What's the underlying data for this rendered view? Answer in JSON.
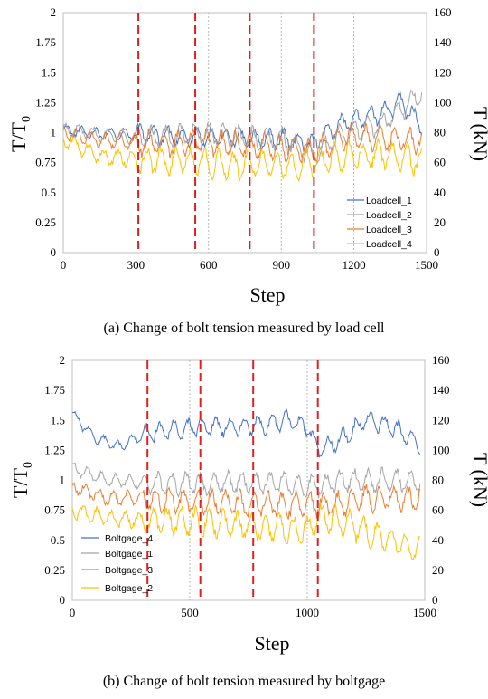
{
  "chart_data": [
    {
      "type": "line",
      "caption": "(a) Change of bolt tension measured by load cell",
      "xlabel": "Step",
      "ylabel_left": "T/T0",
      "ylabel_right": "T (kN)",
      "xlim": [
        0,
        1500
      ],
      "ylim_left": [
        0,
        2
      ],
      "ylim_right": [
        0,
        160
      ],
      "x_ticks": [
        "0",
        "300",
        "600",
        "900",
        "1200",
        "1500"
      ],
      "y_ticks_left": [
        "0",
        "0.25",
        "0.5",
        "0.75",
        "1",
        "1.25",
        "1.5",
        "1.75",
        "2"
      ],
      "y_ticks_right": [
        "0",
        "20",
        "40",
        "60",
        "80",
        "100",
        "120",
        "140",
        "160"
      ],
      "gridlines_x": [
        300,
        600,
        900,
        1200
      ],
      "vertical_markers": [
        310,
        545,
        770,
        1035
      ],
      "legend_position": "lower-right",
      "series": [
        {
          "name": "Loadcell_1",
          "color": "#4472c4",
          "points": [
            [
              0,
              1.02
            ],
            [
              150,
              0.99
            ],
            [
              310,
              0.99
            ],
            [
              450,
              0.97
            ],
            [
              545,
              0.96
            ],
            [
              700,
              0.96
            ],
            [
              770,
              0.95
            ],
            [
              900,
              0.95
            ],
            [
              1035,
              0.9
            ],
            [
              1150,
              1.08
            ],
            [
              1300,
              1.15
            ],
            [
              1400,
              1.25
            ],
            [
              1460,
              1.1
            ],
            [
              1480,
              1.05
            ]
          ]
        },
        {
          "name": "Loadcell_2",
          "color": "#a5a5a5",
          "points": [
            [
              0,
              1.04
            ],
            [
              150,
              0.98
            ],
            [
              310,
              0.96
            ],
            [
              450,
              0.96
            ],
            [
              545,
              1.0
            ],
            [
              700,
              0.98
            ],
            [
              770,
              0.95
            ],
            [
              900,
              0.95
            ],
            [
              1035,
              0.8
            ],
            [
              1150,
              1.0
            ],
            [
              1300,
              1.05
            ],
            [
              1400,
              1.2
            ],
            [
              1460,
              1.3
            ],
            [
              1480,
              1.35
            ]
          ]
        },
        {
          "name": "Loadcell_3",
          "color": "#ed7d31",
          "points": [
            [
              0,
              1.0
            ],
            [
              150,
              0.94
            ],
            [
              310,
              0.92
            ],
            [
              450,
              0.9
            ],
            [
              545,
              0.93
            ],
            [
              700,
              0.9
            ],
            [
              770,
              0.89
            ],
            [
              900,
              0.88
            ],
            [
              1035,
              0.85
            ],
            [
              1150,
              0.95
            ],
            [
              1300,
              0.95
            ],
            [
              1400,
              0.95
            ],
            [
              1480,
              0.93
            ]
          ]
        },
        {
          "name": "Loadcell_4",
          "color": "#ffc000",
          "points": [
            [
              0,
              0.95
            ],
            [
              150,
              0.8
            ],
            [
              310,
              0.78
            ],
            [
              450,
              0.76
            ],
            [
              545,
              0.76
            ],
            [
              700,
              0.72
            ],
            [
              770,
              0.74
            ],
            [
              900,
              0.72
            ],
            [
              1035,
              0.75
            ],
            [
              1150,
              0.8
            ],
            [
              1300,
              0.82
            ],
            [
              1400,
              0.8
            ],
            [
              1480,
              0.76
            ]
          ]
        }
      ]
    },
    {
      "type": "line",
      "caption": "(b) Change of bolt tension measured by boltgage",
      "xlabel": "Step",
      "ylabel_left": "T/T0",
      "ylabel_right": "T (kN)",
      "xlim": [
        0,
        1500
      ],
      "ylim_left": [
        0,
        2
      ],
      "ylim_right": [
        0,
        160
      ],
      "x_ticks": [
        "0",
        "500",
        "1000",
        "1500"
      ],
      "y_ticks_left": [
        "0",
        "0.25",
        "0.5",
        "0.75",
        "1",
        "1.25",
        "1.5",
        "1.75",
        "2"
      ],
      "y_ticks_right": [
        "0",
        "20",
        "40",
        "60",
        "80",
        "100",
        "120",
        "140",
        "160"
      ],
      "gridlines_x": [
        500,
        1000
      ],
      "vertical_markers": [
        320,
        545,
        770,
        1045
      ],
      "legend_position": "lower-left",
      "series": [
        {
          "name": "Boltgage_4",
          "color": "#4472c4",
          "points": [
            [
              0,
              1.55
            ],
            [
              100,
              1.35
            ],
            [
              200,
              1.28
            ],
            [
              320,
              1.4
            ],
            [
              450,
              1.42
            ],
            [
              545,
              1.45
            ],
            [
              700,
              1.45
            ],
            [
              770,
              1.45
            ],
            [
              900,
              1.5
            ],
            [
              1000,
              1.45
            ],
            [
              1045,
              1.25
            ],
            [
              1150,
              1.35
            ],
            [
              1250,
              1.5
            ],
            [
              1350,
              1.45
            ],
            [
              1480,
              1.3
            ]
          ]
        },
        {
          "name": "Boltgage_1",
          "color": "#a5a5a5",
          "points": [
            [
              0,
              1.1
            ],
            [
              150,
              1.0
            ],
            [
              320,
              0.98
            ],
            [
              545,
              0.97
            ],
            [
              770,
              0.98
            ],
            [
              900,
              0.98
            ],
            [
              1045,
              0.95
            ],
            [
              1150,
              1.0
            ],
            [
              1300,
              1.0
            ],
            [
              1400,
              1.0
            ],
            [
              1480,
              0.98
            ]
          ]
        },
        {
          "name": "Boltgage_3",
          "color": "#ed7d31",
          "points": [
            [
              0,
              0.95
            ],
            [
              150,
              0.85
            ],
            [
              320,
              0.85
            ],
            [
              545,
              0.82
            ],
            [
              770,
              0.8
            ],
            [
              900,
              0.8
            ],
            [
              1045,
              0.8
            ],
            [
              1150,
              0.8
            ],
            [
              1250,
              0.85
            ],
            [
              1350,
              0.85
            ],
            [
              1480,
              0.85
            ]
          ]
        },
        {
          "name": "Boltgage_2",
          "color": "#ffc000",
          "points": [
            [
              0,
              0.75
            ],
            [
              150,
              0.68
            ],
            [
              320,
              0.67
            ],
            [
              545,
              0.65
            ],
            [
              770,
              0.62
            ],
            [
              900,
              0.6
            ],
            [
              1000,
              0.58
            ],
            [
              1045,
              0.7
            ],
            [
              1150,
              0.65
            ],
            [
              1250,
              0.58
            ],
            [
              1350,
              0.5
            ],
            [
              1480,
              0.4
            ]
          ]
        }
      ]
    }
  ]
}
